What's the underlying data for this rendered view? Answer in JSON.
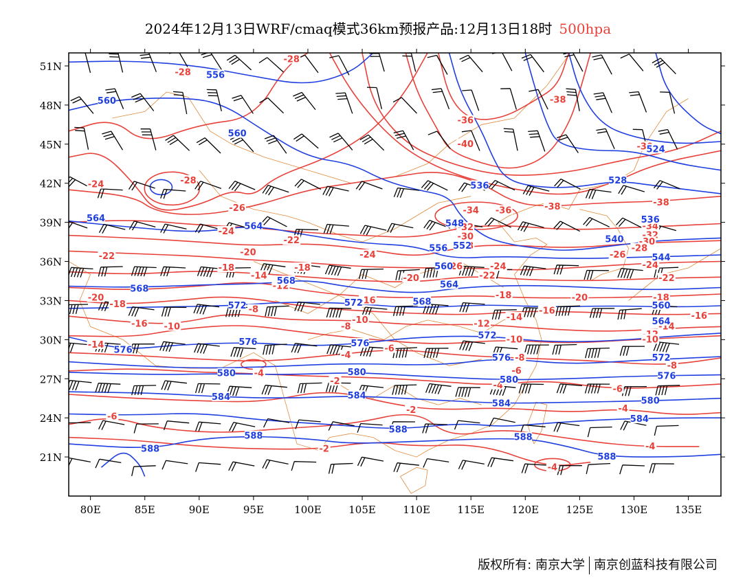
{
  "title": {
    "main": "2024年12月13日WRF/cmaq模式36km预报产品:12月13日18时",
    "level": "500hpa"
  },
  "axes": {
    "lat_labels": [
      "51N",
      "48N",
      "45N",
      "42N",
      "39N",
      "36N",
      "33N",
      "30N",
      "27N",
      "24N",
      "21N"
    ],
    "lat_values": [
      51,
      48,
      45,
      42,
      39,
      36,
      33,
      30,
      27,
      24,
      21
    ],
    "lon_labels": [
      "80E",
      "85E",
      "90E",
      "95E",
      "100E",
      "105E",
      "110E",
      "115E",
      "120E",
      "125E",
      "130E",
      "135E"
    ],
    "lon_values": [
      80,
      85,
      90,
      95,
      100,
      105,
      110,
      115,
      120,
      125,
      130,
      135
    ],
    "lon_range": [
      78,
      138
    ],
    "lat_range": [
      18,
      52
    ]
  },
  "colors": {
    "height": "#1f3fe0",
    "temperature": "#e8413a",
    "border": "#e08a3a",
    "wind": "#000000"
  },
  "height_labels": [
    {
      "text": "556",
      "lon": 91.5,
      "lat": 50.3
    },
    {
      "text": "560",
      "lon": 81.5,
      "lat": 48.3
    },
    {
      "text": "560",
      "lon": 93.5,
      "lat": 45.8
    },
    {
      "text": "564",
      "lon": 80.5,
      "lat": 39.3
    },
    {
      "text": "564",
      "lon": 95,
      "lat": 38.7
    },
    {
      "text": "568",
      "lon": 84.5,
      "lat": 33.9
    },
    {
      "text": "568",
      "lon": 98,
      "lat": 34.5
    },
    {
      "text": "572",
      "lon": 93.5,
      "lat": 32.6
    },
    {
      "text": "572",
      "lon": 104.2,
      "lat": 32.8
    },
    {
      "text": "576",
      "lon": 83,
      "lat": 29.2
    },
    {
      "text": "576",
      "lon": 94.5,
      "lat": 29.8
    },
    {
      "text": "576",
      "lon": 104.8,
      "lat": 29.7
    },
    {
      "text": "580",
      "lon": 92.5,
      "lat": 27.4
    },
    {
      "text": "580",
      "lon": 104.5,
      "lat": 27.5
    },
    {
      "text": "584",
      "lon": 92,
      "lat": 25.6
    },
    {
      "text": "584",
      "lon": 104.5,
      "lat": 25.7
    },
    {
      "text": "588",
      "lon": 95,
      "lat": 22.6
    },
    {
      "text": "588",
      "lon": 85.5,
      "lat": 21.6
    },
    {
      "text": "588",
      "lon": 108.3,
      "lat": 23.1
    },
    {
      "text": "536",
      "lon": 115.8,
      "lat": 41.8
    },
    {
      "text": "548",
      "lon": 113.5,
      "lat": 38.9
    },
    {
      "text": "552",
      "lon": 114.2,
      "lat": 37.2
    },
    {
      "text": "556",
      "lon": 112,
      "lat": 37
    },
    {
      "text": "560",
      "lon": 112.5,
      "lat": 35.6
    },
    {
      "text": "564",
      "lon": 113,
      "lat": 34.2
    },
    {
      "text": "568",
      "lon": 110.5,
      "lat": 32.9
    },
    {
      "text": "572",
      "lon": 116.5,
      "lat": 30.3
    },
    {
      "text": "576",
      "lon": 117.8,
      "lat": 28.6
    },
    {
      "text": "580",
      "lon": 118.5,
      "lat": 26.9
    },
    {
      "text": "584",
      "lon": 117.8,
      "lat": 25.1
    },
    {
      "text": "588",
      "lon": 119.8,
      "lat": 22.5
    },
    {
      "text": "528",
      "lon": 128.5,
      "lat": 42.2
    },
    {
      "text": "524",
      "lon": 132,
      "lat": 44.6
    },
    {
      "text": "540",
      "lon": 128.2,
      "lat": 37.7
    },
    {
      "text": "544",
      "lon": 132.5,
      "lat": 36.3
    },
    {
      "text": "560",
      "lon": 132.5,
      "lat": 32.6
    },
    {
      "text": "564",
      "lon": 132.5,
      "lat": 31.4
    },
    {
      "text": "572",
      "lon": 132.5,
      "lat": 28.6
    },
    {
      "text": "576",
      "lon": 133,
      "lat": 27.2
    },
    {
      "text": "580",
      "lon": 131.5,
      "lat": 25.3
    },
    {
      "text": "584",
      "lon": 130.5,
      "lat": 23.9
    },
    {
      "text": "588",
      "lon": 127.5,
      "lat": 21
    },
    {
      "text": "536",
      "lon": 131.5,
      "lat": 39.2
    }
  ],
  "temp_labels": [
    {
      "text": "-28",
      "lon": 88.5,
      "lat": 50.5
    },
    {
      "text": "-28",
      "lon": 98.5,
      "lat": 51.5
    },
    {
      "text": "-24",
      "lon": 80.5,
      "lat": 41.9
    },
    {
      "text": "-28",
      "lon": 89,
      "lat": 42.2
    },
    {
      "text": "-26",
      "lon": 93.5,
      "lat": 40.1
    },
    {
      "text": "-24",
      "lon": 92.5,
      "lat": 38.3
    },
    {
      "text": "-22",
      "lon": 81.5,
      "lat": 36.4
    },
    {
      "text": "-22",
      "lon": 98.5,
      "lat": 37.6
    },
    {
      "text": "-20",
      "lon": 94.5,
      "lat": 36.7
    },
    {
      "text": "-18",
      "lon": 92.5,
      "lat": 35.5
    },
    {
      "text": "-18",
      "lon": 99.5,
      "lat": 35.5
    },
    {
      "text": "-14",
      "lon": 95.5,
      "lat": 34.9
    },
    {
      "text": "-12",
      "lon": 97.5,
      "lat": 34.1
    },
    {
      "text": "-20",
      "lon": 80.5,
      "lat": 33.2
    },
    {
      "text": "-18",
      "lon": 82.5,
      "lat": 32.7
    },
    {
      "text": "-16",
      "lon": 84.5,
      "lat": 31.2
    },
    {
      "text": "-10",
      "lon": 87.5,
      "lat": 31
    },
    {
      "text": "-8",
      "lon": 95,
      "lat": 32.3
    },
    {
      "text": "-14",
      "lon": 80.5,
      "lat": 29.6
    },
    {
      "text": "-24",
      "lon": 105.5,
      "lat": 36.5
    },
    {
      "text": "-20",
      "lon": 109.5,
      "lat": 34.7
    },
    {
      "text": "-16",
      "lon": 105.5,
      "lat": 33
    },
    {
      "text": "-10",
      "lon": 104.8,
      "lat": 31.5
    },
    {
      "text": "-8",
      "lon": 103.5,
      "lat": 31
    },
    {
      "text": "-6",
      "lon": 107.5,
      "lat": 29.3
    },
    {
      "text": "-4",
      "lon": 103.5,
      "lat": 28.8
    },
    {
      "text": "-4",
      "lon": 95.5,
      "lat": 27.4
    },
    {
      "text": "-2",
      "lon": 102.5,
      "lat": 26.8
    },
    {
      "text": "-6",
      "lon": 82,
      "lat": 24.1
    },
    {
      "text": "-2",
      "lon": 109.5,
      "lat": 24.6
    },
    {
      "text": "-2",
      "lon": 101.5,
      "lat": 21.6
    },
    {
      "text": "-36",
      "lon": 114.5,
      "lat": 46.8
    },
    {
      "text": "-40",
      "lon": 114.5,
      "lat": 45
    },
    {
      "text": "-38",
      "lon": 123,
      "lat": 48.4
    },
    {
      "text": "-34",
      "lon": 115,
      "lat": 39.9
    },
    {
      "text": "-36",
      "lon": 118,
      "lat": 39.9
    },
    {
      "text": "-38",
      "lon": 122.5,
      "lat": 40.2
    },
    {
      "text": "-32",
      "lon": 114.5,
      "lat": 38.6
    },
    {
      "text": "-30",
      "lon": 114.5,
      "lat": 37.9
    },
    {
      "text": "-28",
      "lon": 114.5,
      "lat": 37.2
    },
    {
      "text": "-26",
      "lon": 113.5,
      "lat": 35.6
    },
    {
      "text": "-24",
      "lon": 117.5,
      "lat": 35.6
    },
    {
      "text": "-22",
      "lon": 116.5,
      "lat": 34.9
    },
    {
      "text": "-18",
      "lon": 118,
      "lat": 33.4
    },
    {
      "text": "-14",
      "lon": 119,
      "lat": 31.7
    },
    {
      "text": "-12",
      "lon": 116,
      "lat": 31.2
    },
    {
      "text": "-16",
      "lon": 122,
      "lat": 32.2
    },
    {
      "text": "-10",
      "lon": 119,
      "lat": 30
    },
    {
      "text": "-8",
      "lon": 119.5,
      "lat": 28.6
    },
    {
      "text": "-6",
      "lon": 119.2,
      "lat": 27.6
    },
    {
      "text": "-4",
      "lon": 117.5,
      "lat": 26.5
    },
    {
      "text": "-20",
      "lon": 125,
      "lat": 33.2
    },
    {
      "text": "-30",
      "lon": 131,
      "lat": 44.8
    },
    {
      "text": "-38",
      "lon": 132.5,
      "lat": 40.5
    },
    {
      "text": "-36",
      "lon": 131.5,
      "lat": 39.2
    },
    {
      "text": "-34",
      "lon": 131.5,
      "lat": 38.7
    },
    {
      "text": "-32",
      "lon": 131.5,
      "lat": 38
    },
    {
      "text": "-30",
      "lon": 131.2,
      "lat": 37.5
    },
    {
      "text": "-28",
      "lon": 130.5,
      "lat": 37
    },
    {
      "text": "-26",
      "lon": 128.5,
      "lat": 36.5
    },
    {
      "text": "-24",
      "lon": 131.5,
      "lat": 35.7
    },
    {
      "text": "-22",
      "lon": 133,
      "lat": 34.7
    },
    {
      "text": "-18",
      "lon": 132.5,
      "lat": 33.2
    },
    {
      "text": "-16",
      "lon": 136,
      "lat": 31.8
    },
    {
      "text": "-14",
      "lon": 133,
      "lat": 31
    },
    {
      "text": "-12",
      "lon": 131.5,
      "lat": 30.4
    },
    {
      "text": "-10",
      "lon": 131.5,
      "lat": 30
    },
    {
      "text": "-8",
      "lon": 133.5,
      "lat": 28
    },
    {
      "text": "-6",
      "lon": 128.5,
      "lat": 26.2
    },
    {
      "text": "-4",
      "lon": 129,
      "lat": 24.7
    },
    {
      "text": "-4",
      "lon": 131.5,
      "lat": 21.8
    },
    {
      "text": "-4",
      "lon": 122.5,
      "lat": 20.2
    }
  ],
  "copyright": {
    "left": "版权所有: 南京大学",
    "right": "南京创蓝科技有限公司"
  }
}
